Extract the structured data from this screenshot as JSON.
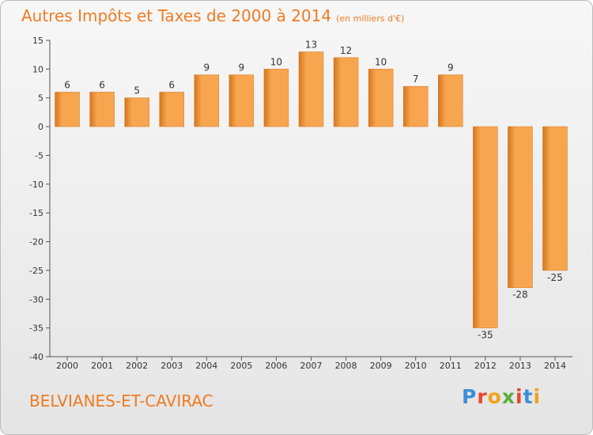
{
  "header": {
    "title": "Autres Impôts et Taxes de 2000 à 2014",
    "unit": "(en milliers d'€)"
  },
  "footer": {
    "commune": "BELVIANES-ET-CAVIRAC",
    "brand": "Proxiti"
  },
  "colors": {
    "title": "#ee7b22",
    "bar_light": "#f7a54f",
    "bar_dark": "#d4761f",
    "brand_letters": [
      "#3b8fd8",
      "#e8482c",
      "#f1a21b",
      "#5cae3c",
      "#e8482c",
      "#3b8fd8",
      "#f1a21b"
    ]
  },
  "chart_data": {
    "type": "bar",
    "title": "Autres Impôts et Taxes de 2000 à 2014",
    "xlabel": "",
    "ylabel": "",
    "categories": [
      "2000",
      "2001",
      "2002",
      "2003",
      "2004",
      "2005",
      "2006",
      "2007",
      "2008",
      "2009",
      "2010",
      "2011",
      "2012",
      "2013",
      "2014"
    ],
    "values": [
      6,
      6,
      5,
      6,
      9,
      9,
      10,
      13,
      12,
      10,
      7,
      9,
      -35,
      -28,
      -25
    ],
    "labels": [
      "6",
      "6",
      "5",
      "6",
      "9",
      "9",
      "10",
      "13",
      "12",
      "10",
      "7",
      "9",
      "-35",
      "-28",
      "-25"
    ],
    "ylim": [
      -40,
      15
    ],
    "yticks": [
      15,
      10,
      5,
      0,
      -5,
      -10,
      -15,
      -20,
      -25,
      -30,
      -35,
      -40
    ],
    "ytick_labels": [
      "15",
      "10",
      "5",
      "0",
      "-5",
      "-10",
      "-15",
      "-20",
      "-25",
      "-30",
      "-35",
      "-40"
    ],
    "grid": false,
    "legend": "none"
  }
}
